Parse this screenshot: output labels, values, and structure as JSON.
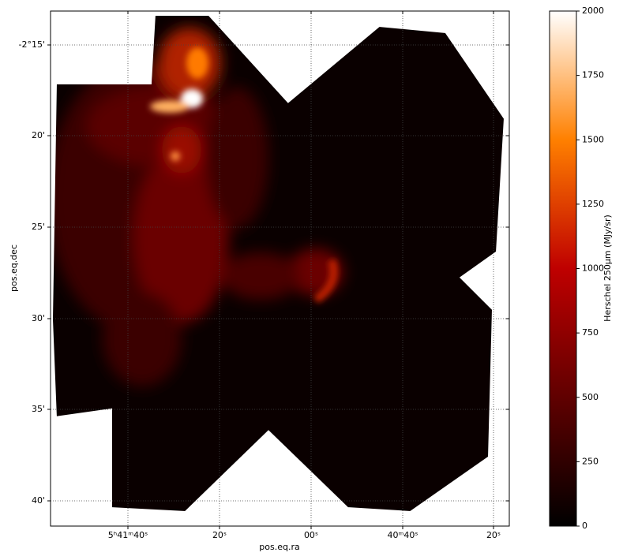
{
  "chart_data": {
    "type": "image",
    "xlabel": "pos.eq.ra",
    "ylabel": "pos.eq.dec",
    "xtick_labels": [
      "5ʰ41ᵐ40ˢ",
      "20ˢ",
      "00ˢ",
      "40ᵐ40ˢ",
      "20ˢ"
    ],
    "ytick_labels": [
      "-2°15'",
      "20'",
      "25'",
      "30'",
      "35'",
      "40'"
    ],
    "grid": true,
    "colorbar": {
      "label": "Herschel 250μm (MJy/sr)",
      "ylim": [
        0,
        2000
      ],
      "yticks": [
        0,
        250,
        500,
        750,
        1000,
        1250,
        1500,
        1750,
        2000
      ],
      "colors": [
        "#000000",
        "#600000",
        "#bf0000",
        "#ff8000",
        "#ffffff"
      ]
    }
  }
}
